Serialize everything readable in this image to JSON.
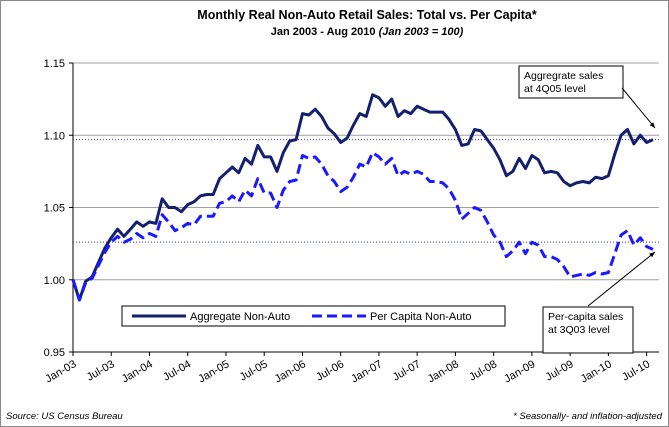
{
  "chart_data": {
    "type": "line",
    "title": "Monthly Real Non-Auto Retail Sales: Total vs. Per Capita*",
    "subtitle": "Jan 2003 - Aug 2010",
    "subtitle_note": "(Jan 2003 = 100)",
    "categories": [
      "Jan-03",
      null,
      null,
      null,
      null,
      null,
      "Jul-03",
      null,
      null,
      null,
      null,
      null,
      "Jan-04",
      null,
      null,
      null,
      null,
      null,
      "Jul-04",
      null,
      null,
      null,
      null,
      null,
      "Jan-05",
      null,
      null,
      null,
      null,
      null,
      "Jul-05",
      null,
      null,
      null,
      null,
      null,
      "Jan-06",
      null,
      null,
      null,
      null,
      null,
      "Jul-06",
      null,
      null,
      null,
      null,
      null,
      "Jan-07",
      null,
      null,
      null,
      null,
      null,
      "Jul-07",
      null,
      null,
      null,
      null,
      null,
      "Jan-08",
      null,
      null,
      null,
      null,
      null,
      "Jul-08",
      null,
      null,
      null,
      null,
      null,
      "Jan-09",
      null,
      null,
      null,
      null,
      null,
      "Jul-09",
      null,
      null,
      null,
      null,
      null,
      "Jan-10",
      null,
      null,
      null,
      null,
      null,
      "Jul-10",
      null
    ],
    "series": [
      {
        "name": "Aggregate Non-Auto",
        "color": "#14206e",
        "dash": false,
        "values": [
          1.0,
          0.986,
          0.999,
          1.002,
          1.012,
          1.022,
          1.029,
          1.035,
          1.03,
          1.035,
          1.04,
          1.037,
          1.04,
          1.039,
          1.056,
          1.05,
          1.05,
          1.047,
          1.052,
          1.054,
          1.058,
          1.059,
          1.059,
          1.07,
          1.074,
          1.078,
          1.074,
          1.084,
          1.08,
          1.093,
          1.085,
          1.085,
          1.075,
          1.088,
          1.096,
          1.097,
          1.115,
          1.114,
          1.118,
          1.113,
          1.105,
          1.101,
          1.095,
          1.098,
          1.107,
          1.115,
          1.113,
          1.128,
          1.126,
          1.12,
          1.125,
          1.113,
          1.117,
          1.115,
          1.12,
          1.118,
          1.116,
          1.116,
          1.116,
          1.111,
          1.104,
          1.093,
          1.094,
          1.104,
          1.103,
          1.097,
          1.091,
          1.083,
          1.072,
          1.075,
          1.084,
          1.077,
          1.086,
          1.083,
          1.074,
          1.075,
          1.074,
          1.068,
          1.065,
          1.067,
          1.068,
          1.067,
          1.071,
          1.07,
          1.072,
          1.087,
          1.1,
          1.104,
          1.094,
          1.1,
          1.095,
          1.097
        ]
      },
      {
        "name": "Per Capita Non-Auto",
        "color": "#1a1aff",
        "dash": true,
        "values": [
          1.0,
          0.986,
          0.998,
          1.001,
          1.01,
          1.019,
          1.026,
          1.03,
          1.026,
          1.028,
          1.032,
          1.029,
          1.032,
          1.03,
          1.045,
          1.04,
          1.034,
          1.036,
          1.039,
          1.038,
          1.044,
          1.044,
          1.044,
          1.053,
          1.054,
          1.058,
          1.054,
          1.062,
          1.058,
          1.07,
          1.06,
          1.06,
          1.05,
          1.062,
          1.068,
          1.069,
          1.086,
          1.084,
          1.085,
          1.08,
          1.072,
          1.068,
          1.061,
          1.064,
          1.071,
          1.08,
          1.078,
          1.088,
          1.085,
          1.08,
          1.084,
          1.072,
          1.075,
          1.073,
          1.075,
          1.073,
          1.068,
          1.068,
          1.067,
          1.063,
          1.055,
          1.042,
          1.046,
          1.05,
          1.048,
          1.04,
          1.031,
          1.026,
          1.016,
          1.02,
          1.026,
          1.018,
          1.026,
          1.024,
          1.016,
          1.016,
          1.014,
          1.009,
          1.002,
          1.003,
          1.004,
          1.003,
          1.005,
          1.004,
          1.005,
          1.018,
          1.031,
          1.034,
          1.024,
          1.029,
          1.023,
          1.021
        ]
      }
    ],
    "ylim": [
      0.95,
      1.15
    ],
    "yticks": [
      0.95,
      {
        "value": 1.0,
        "label": "1.00"
      },
      1.05,
      {
        "value": 1.1,
        "label": "1.10"
      },
      1.15
    ],
    "grid": true,
    "reference_lines": [
      {
        "value": 1.097,
        "color": "#3333cc",
        "annotation": [
          "Aggregrate sales",
          "at 4Q05 level"
        ]
      },
      {
        "value": 1.026,
        "color": "#3333cc",
        "annotation": [
          "Per-capita sales",
          "at 3Q03 level"
        ]
      }
    ],
    "source": "Source: US Census Bureau",
    "footnote": "* Seasonally- and inflation-adjusted"
  }
}
